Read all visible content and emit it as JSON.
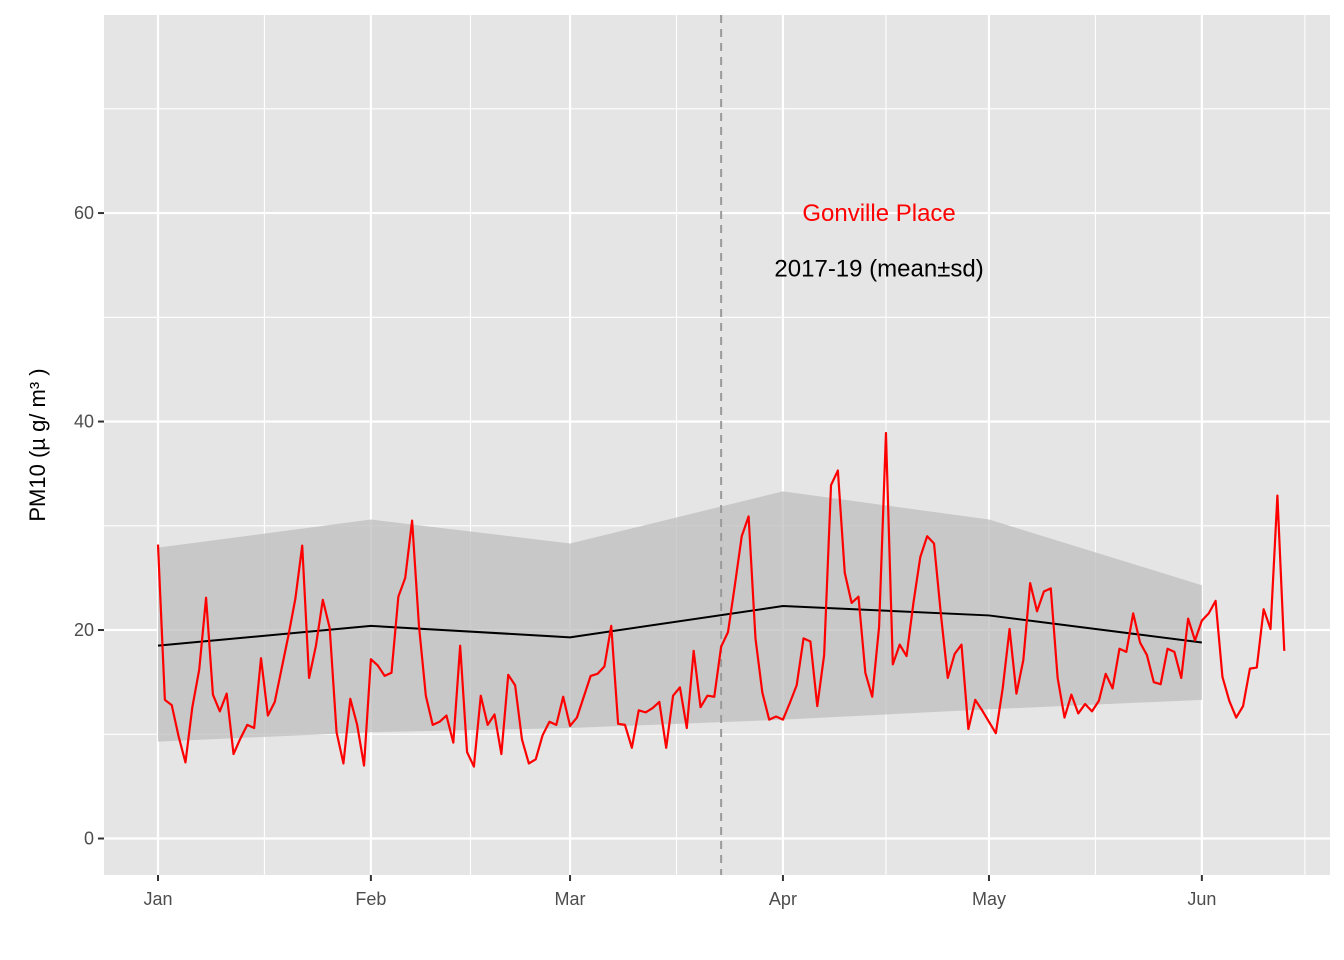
{
  "chart_data": {
    "type": "line",
    "ylabel": "PM10 (µ g/ m³ )",
    "xlabel": "",
    "xlim": [
      "2020-01-01",
      "2020-06-15"
    ],
    "ylim": [
      -3.5,
      79
    ],
    "x_ticks": [
      {
        "date": "2020-01-01",
        "label": "Jan"
      },
      {
        "date": "2020-02-01",
        "label": "Feb"
      },
      {
        "date": "2020-03-01",
        "label": "Mar"
      },
      {
        "date": "2020-04-01",
        "label": "Apr"
      },
      {
        "date": "2020-05-01",
        "label": "May"
      },
      {
        "date": "2020-06-01",
        "label": "Jun"
      }
    ],
    "y_ticks": [
      0,
      20,
      40,
      60
    ],
    "grid": true,
    "vline": {
      "date": "2020-03-23"
    },
    "annotations": [
      {
        "text": "Gonville Place",
        "date": "2020-04-15",
        "y": 60,
        "color": "#ff0000"
      },
      {
        "text": "2017-19 (mean±sd)",
        "date": "2020-04-15",
        "y": 54.7,
        "color": "#000000"
      }
    ],
    "series": [
      {
        "color": "#000000",
        "x": [
          "2020-01-01",
          "2020-02-01",
          "2020-03-01",
          "2020-04-01",
          "2020-05-01",
          "2020-06-01"
        ],
        "values": [
          18.5,
          20.4,
          19.3,
          22.3,
          21.4,
          18.8
        ],
        "band_low": [
          9.3,
          10.2,
          10.6,
          11.4,
          12.4,
          13.3
        ],
        "band_high": [
          27.9,
          30.6,
          28.3,
          33.3,
          30.6,
          24.3
        ]
      },
      {
        "name": "Gonville Place",
        "color": "#ff0000",
        "start": "2020-01-01",
        "values": [
          28.2,
          13.3,
          12.8,
          9.8,
          7.3,
          12.6,
          16.2,
          23.1,
          13.8,
          12.2,
          13.9,
          8.1,
          9.6,
          10.9,
          10.6,
          17.3,
          11.8,
          13.1,
          16.3,
          19.5,
          23.0,
          28.1,
          15.4,
          18.5,
          22.9,
          20.2,
          10.2,
          7.2,
          13.4,
          10.9,
          7.0,
          17.2,
          16.6,
          15.6,
          15.9,
          23.2,
          25.0,
          30.5,
          20.4,
          13.7,
          10.9,
          11.2,
          11.8,
          9.2,
          18.5,
          8.3,
          6.9,
          13.7,
          10.9,
          11.9,
          8.1,
          15.7,
          14.7,
          9.5,
          7.2,
          7.6,
          9.9,
          11.2,
          10.9,
          13.6,
          10.8,
          11.6,
          13.6,
          15.6,
          15.8,
          16.5,
          20.4,
          11.0,
          10.9,
          8.7,
          12.3,
          12.1,
          12.5,
          13.1,
          8.7,
          13.7,
          14.5,
          10.6,
          18.0,
          12.6,
          13.7,
          13.6,
          18.4,
          19.8,
          24.3,
          29.0,
          30.9,
          19.2,
          14.0,
          11.4,
          11.7,
          11.4,
          13.0,
          14.7,
          19.2,
          18.9,
          12.7,
          17.6,
          33.9,
          35.3,
          25.5,
          22.6,
          23.2,
          15.9,
          13.6,
          20.3,
          38.9,
          16.7,
          18.6,
          17.5,
          22.6,
          27.0,
          29.0,
          28.3,
          21.5,
          15.4,
          17.7,
          18.6,
          10.5,
          13.3,
          12.3,
          11.2,
          10.1,
          14.4,
          20.1,
          13.9,
          17.1,
          24.5,
          21.8,
          23.7,
          24.0,
          15.4,
          11.6,
          13.8,
          12.0,
          12.9,
          12.2,
          13.2,
          15.8,
          14.4,
          18.2,
          17.9,
          21.6,
          18.8,
          17.6,
          15.0,
          14.8,
          18.2,
          17.9,
          15.4,
          21.1,
          19.0,
          20.9,
          21.6,
          22.8,
          15.5,
          13.2,
          11.6,
          12.7,
          16.3,
          16.4,
          22.0,
          20.1,
          32.9,
          18.0
        ]
      }
    ]
  }
}
